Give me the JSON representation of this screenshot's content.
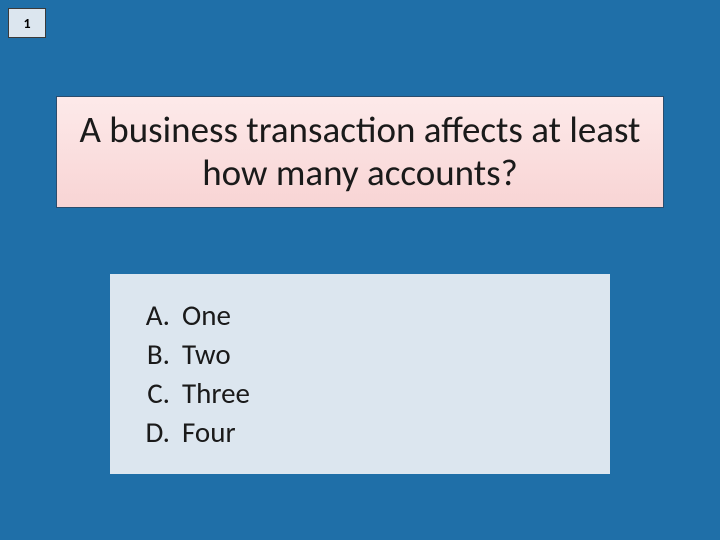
{
  "slide": {
    "number": "1",
    "background_color": "#1f6fa8"
  },
  "slide_number_box": {
    "background_color": "#dce6ef",
    "border_color": "#3a3a3a",
    "text_color": "#000000",
    "fontsize": 14
  },
  "question": {
    "text": "A business transaction affects at least how many accounts?",
    "fontsize": 37,
    "text_color": "#1a1a1a",
    "background_gradient_top": "#fdeaea",
    "background_gradient_bottom": "#f8d4d4",
    "border_color": "#2a4d6e"
  },
  "answers": {
    "background_color": "#dce6ef",
    "fontsize": 29,
    "text_color": "#1a1a1a",
    "items": [
      {
        "letter": "A.",
        "text": "One"
      },
      {
        "letter": "B.",
        "text": "Two"
      },
      {
        "letter": "C.",
        "text": "Three"
      },
      {
        "letter": "D.",
        "text": "Four"
      }
    ]
  }
}
